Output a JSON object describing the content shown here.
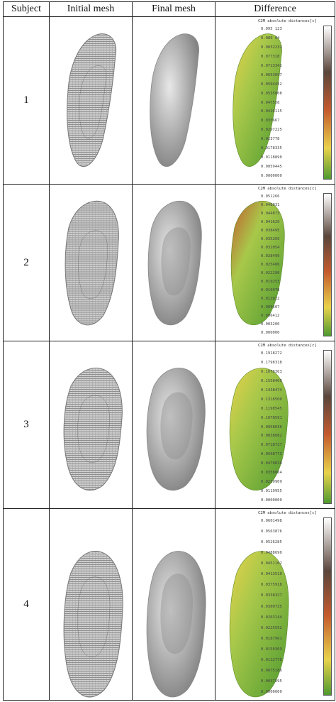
{
  "header": {
    "subject": "Subject",
    "initial_mesh": "Initial mesh",
    "final_mesh": "Final mesh",
    "difference": "Difference"
  },
  "colormap": {
    "top": "#ffffff",
    "upper": "#5a463c",
    "middle": "#c45a2e",
    "lower": "#e8d24a",
    "bottom": "#4e9a2f",
    "mesh_light": "#e8e8e8",
    "mesh_dark": "#7a7a7a"
  },
  "rows": [
    {
      "subject": "1",
      "colorbar_title": "C2M absolute distances[c]",
      "ticks": [
        "0.095 123",
        "0.089 64",
        "0.0832232",
        "0.077318",
        "0.0713342",
        "0.0653097",
        "0.0594452",
        "0.0535008",
        "0.047558",
        "0.0416115",
        "0.035667",
        "0.0297225",
        "0.023778",
        "0.0178335",
        "0.0118890",
        "0.0059445",
        "0.0000000"
      ]
    },
    {
      "subject": "2",
      "colorbar_title": "C2M absolute distances[c]",
      "ticks": [
        "0.051266",
        "0.048031",
        "0.044873",
        "0.041620",
        "0.038495",
        "0.035269",
        "0.032054",
        "0.028499",
        "0.025486",
        "0.022290",
        "0.019253",
        "0.016078",
        "0.012822",
        "0.009607",
        "0.006412",
        "0.003206",
        "0.000000"
      ]
    },
    {
      "subject": "3",
      "colorbar_title": "C2M absolute distances[c]",
      "ticks": [
        "0.1918272",
        "0.1798318",
        "0.1678363",
        "0.1558409",
        "0.1438474",
        "0.1318500",
        "0.1198545",
        "0.1078591",
        "0.0958636",
        "0.0838682",
        "0.0718727",
        "0.0598773",
        "0.0478818",
        "0.0358864",
        "0.0239909",
        "0.0119955",
        "0.0000000"
      ]
    },
    {
      "subject": "4",
      "colorbar_title": "C2M absolute distances[c]",
      "ticks": [
        "0.0601498",
        "0.0563876",
        "0.0526285",
        "0.0488690",
        "0.0451102",
        "0.0413510",
        "0.0375918",
        "0.0338327",
        "0.0300735",
        "0.0263144",
        "0.0225552",
        "0.0187961",
        "0.0150369",
        "0.0112778",
        "0.0075186",
        "0.0037595",
        "0.0000000"
      ]
    }
  ]
}
